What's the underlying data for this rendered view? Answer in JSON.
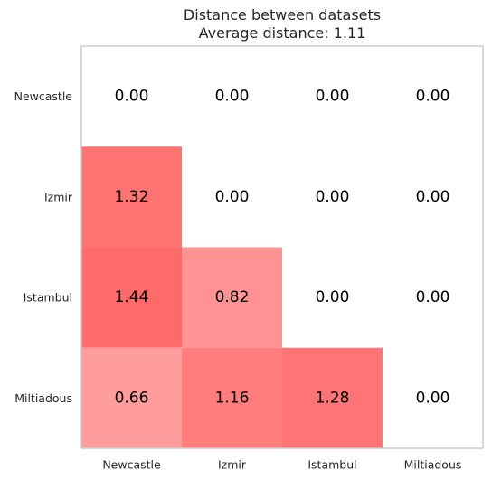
{
  "chart_data": {
    "type": "heatmap",
    "title": "Distance between datasets",
    "subtitle": "Average distance: 1.11",
    "row_labels": [
      "Newcastle",
      "Izmir",
      "Istambul",
      "Miltiadous"
    ],
    "col_labels": [
      "Newcastle",
      "Izmir",
      "Istambul",
      "Miltiadous"
    ],
    "values": [
      [
        0.0,
        0.0,
        0.0,
        0.0
      ],
      [
        1.32,
        0.0,
        0.0,
        0.0
      ],
      [
        1.44,
        0.82,
        0.0,
        0.0
      ],
      [
        0.66,
        1.16,
        1.28,
        0.0
      ]
    ],
    "value_labels": [
      [
        "0.00",
        "0.00",
        "0.00",
        "0.00"
      ],
      [
        "1.32",
        "0.00",
        "0.00",
        "0.00"
      ],
      [
        "1.44",
        "0.82",
        "0.00",
        "0.00"
      ],
      [
        "0.66",
        "1.16",
        "1.28",
        "0.00"
      ]
    ],
    "colored_region": "lower-triangle",
    "color_scale": {
      "low": "#ffffff",
      "high": "#ff6b6b"
    },
    "grid": false
  }
}
